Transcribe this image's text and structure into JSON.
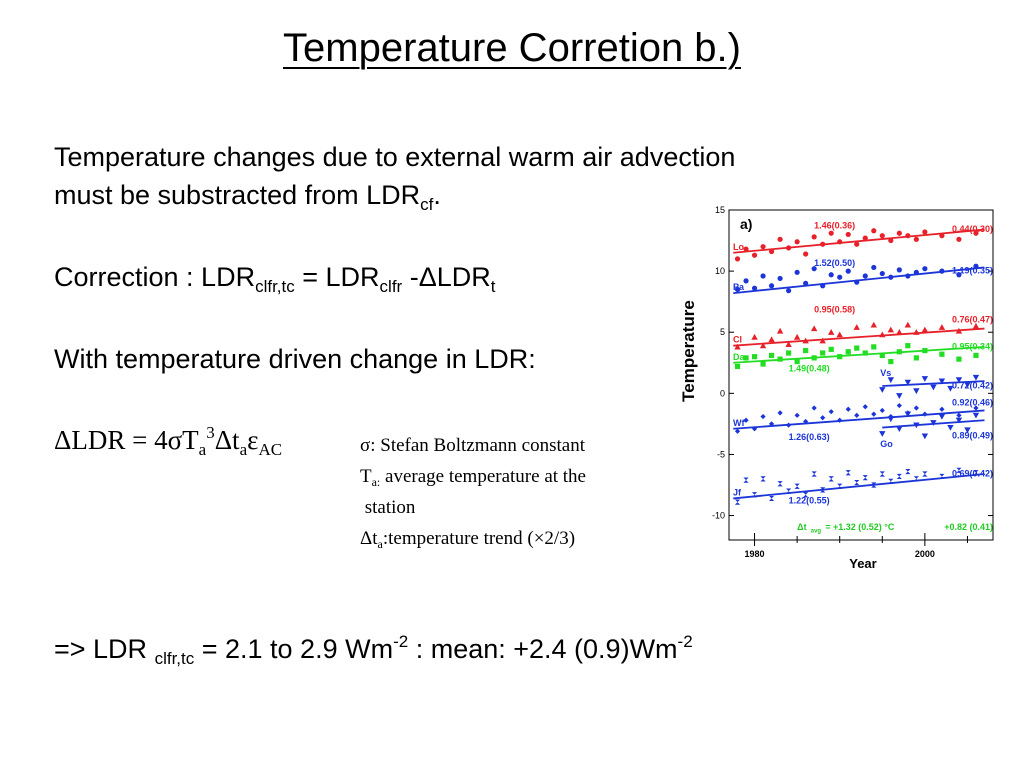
{
  "title": "Temperature Corretion b.)",
  "line1": "Temperature changes due to external warm air advection",
  "line2_main": "must be substracted from LDR",
  "line2_sub": "cf",
  "line2_end": ".",
  "correction": {
    "prefix": "Correction : LDR",
    "sub1": "clfr,tc",
    "eq": " = LDR",
    "sub2": "clfr",
    "minus": " -ΔLDR",
    "sub3": "t"
  },
  "with_text": "With temperature driven change in LDR:",
  "formula": {
    "lhs": "ΔLDR = 4σT",
    "sub_a1": "a",
    "sup3": "3",
    "dt": "Δt",
    "sub_a2": "a",
    "eps": "ε",
    "sub_ac": "AC"
  },
  "notes": {
    "sigma": "σ: Stefan Boltzmann constant",
    "ta_main": "T",
    "ta_sub": "a:",
    "ta_rest": " average temperature at the",
    "station": " station",
    "dta_main": "Δt",
    "dta_sub": "a",
    "dta_rest": ":temperature trend (×2/3)"
  },
  "result": {
    "prefix": "=> LDR ",
    "sub": "clfr,tc",
    "mid": " = 2.1 to 2.9 Wm",
    "sup1": "-2",
    "mid2": " :  mean: +2.4 (0.9)Wm",
    "sup2": "-2"
  },
  "chart_data": {
    "type": "scatter",
    "panel_label": "a)",
    "xlabel": "Year",
    "ylabel": "Temperature",
    "xlim": [
      1977,
      2008
    ],
    "ylim": [
      -12,
      15
    ],
    "xticks": [
      1980,
      2000
    ],
    "yticks": [
      15,
      10,
      5,
      0,
      -5,
      -10
    ],
    "series": [
      {
        "name": "Lo",
        "color": "#e8202a",
        "shape": "circle",
        "trend_start": [
          1977.5,
          11.5
        ],
        "trend_end": [
          2007,
          13.4
        ],
        "points": [
          [
            1978,
            11.0
          ],
          [
            1979,
            11.8
          ],
          [
            1980,
            11.3
          ],
          [
            1981,
            12.0
          ],
          [
            1982,
            11.6
          ],
          [
            1983,
            12.6
          ],
          [
            1984,
            11.9
          ],
          [
            1985,
            12.4
          ],
          [
            1986,
            11.4
          ],
          [
            1987,
            12.8
          ],
          [
            1988,
            12.2
          ],
          [
            1989,
            13.1
          ],
          [
            1990,
            12.4
          ],
          [
            1991,
            13.0
          ],
          [
            1992,
            12.2
          ],
          [
            1993,
            12.7
          ],
          [
            1994,
            13.3
          ],
          [
            1995,
            12.9
          ],
          [
            1996,
            12.5
          ],
          [
            1997,
            13.1
          ],
          [
            1998,
            12.9
          ],
          [
            1999,
            12.6
          ],
          [
            2000,
            13.2
          ],
          [
            2002,
            12.9
          ],
          [
            2004,
            12.6
          ],
          [
            2006,
            13.1
          ]
        ],
        "labels": [
          {
            "text": "1.46(0.36)",
            "x": 1987,
            "y": 13.5
          },
          {
            "text": "0.44(0.30)",
            "x": 2008,
            "y": 13.2,
            "anchor": "end"
          }
        ]
      },
      {
        "name": "Pa",
        "color": "#1c35d8",
        "shape": "circle",
        "trend_start": [
          1977.5,
          8.2
        ],
        "trend_end": [
          2007,
          10.3
        ],
        "points": [
          [
            1978,
            8.5
          ],
          [
            1979,
            9.2
          ],
          [
            1980,
            8.6
          ],
          [
            1981,
            9.6
          ],
          [
            1982,
            8.8
          ],
          [
            1983,
            9.4
          ],
          [
            1984,
            8.4
          ],
          [
            1985,
            9.9
          ],
          [
            1986,
            9.0
          ],
          [
            1987,
            10.2
          ],
          [
            1988,
            8.8
          ],
          [
            1989,
            9.7
          ],
          [
            1990,
            9.5
          ],
          [
            1991,
            10.0
          ],
          [
            1992,
            9.1
          ],
          [
            1993,
            9.6
          ],
          [
            1994,
            10.3
          ],
          [
            1995,
            9.8
          ],
          [
            1996,
            9.5
          ],
          [
            1997,
            10.1
          ],
          [
            1998,
            9.6
          ],
          [
            1999,
            9.9
          ],
          [
            2000,
            10.2
          ],
          [
            2002,
            10.0
          ],
          [
            2004,
            9.7
          ],
          [
            2006,
            10.4
          ]
        ],
        "labels": [
          {
            "text": "1.52(0.50)",
            "x": 1987,
            "y": 10.4
          },
          {
            "text": "1.19(0.35)",
            "x": 2008,
            "y": 9.8,
            "anchor": "end"
          }
        ]
      },
      {
        "name": "Cl",
        "color": "#e8202a",
        "shape": "triangle",
        "trend_start": [
          1977.5,
          3.9
        ],
        "trend_end": [
          2007,
          5.3
        ],
        "points": [
          [
            1978,
            3.8
          ],
          [
            1980,
            4.6
          ],
          [
            1981,
            3.9
          ],
          [
            1982,
            4.4
          ],
          [
            1983,
            5.1
          ],
          [
            1984,
            4.0
          ],
          [
            1985,
            4.6
          ],
          [
            1986,
            4.3
          ],
          [
            1987,
            5.3
          ],
          [
            1988,
            4.3
          ],
          [
            1989,
            5.0
          ],
          [
            1990,
            4.8
          ],
          [
            1992,
            5.4
          ],
          [
            1994,
            5.6
          ],
          [
            1995,
            4.8
          ],
          [
            1996,
            5.2
          ],
          [
            1997,
            5.0
          ],
          [
            1998,
            5.6
          ],
          [
            1999,
            5.0
          ],
          [
            2000,
            5.2
          ],
          [
            2002,
            5.4
          ],
          [
            2004,
            5.1
          ],
          [
            2006,
            5.5
          ]
        ],
        "labels": [
          {
            "text": "0.95(0.58)",
            "x": 1987,
            "y": 6.6
          },
          {
            "text": "0.76(0.47)",
            "x": 2008,
            "y": 5.8,
            "anchor": "end"
          }
        ]
      },
      {
        "name": "Da",
        "color": "#22dd22",
        "shape": "square",
        "trend_start": [
          1977.5,
          2.5
        ],
        "trend_end": [
          2007,
          3.8
        ],
        "points": [
          [
            1978,
            2.2
          ],
          [
            1979,
            2.9
          ],
          [
            1980,
            3.0
          ],
          [
            1981,
            2.4
          ],
          [
            1982,
            3.1
          ],
          [
            1983,
            2.8
          ],
          [
            1984,
            3.3
          ],
          [
            1985,
            2.6
          ],
          [
            1986,
            3.5
          ],
          [
            1987,
            2.9
          ],
          [
            1988,
            3.3
          ],
          [
            1989,
            3.6
          ],
          [
            1990,
            3.0
          ],
          [
            1991,
            3.4
          ],
          [
            1992,
            3.7
          ],
          [
            1993,
            3.3
          ],
          [
            1994,
            3.8
          ],
          [
            1995,
            3.1
          ],
          [
            1996,
            2.6
          ],
          [
            1997,
            3.4
          ],
          [
            1998,
            3.9
          ],
          [
            1999,
            2.9
          ],
          [
            2000,
            3.5
          ],
          [
            2002,
            3.2
          ],
          [
            2004,
            2.8
          ],
          [
            2006,
            3.1
          ]
        ],
        "labels": [
          {
            "text": "1.49(0.48)",
            "x": 1984,
            "y": 1.8
          },
          {
            "text": "0.95(0.34)",
            "x": 2008,
            "y": 3.6,
            "anchor": "end"
          }
        ]
      },
      {
        "name": "Vs",
        "color": "#1c35d8",
        "shape": "triangle-down",
        "trend_start": [
          1995,
          0.6
        ],
        "trend_end": [
          2007,
          1.0
        ],
        "points": [
          [
            1995,
            0.3
          ],
          [
            1996,
            1.1
          ],
          [
            1997,
            -0.2
          ],
          [
            1998,
            0.9
          ],
          [
            1999,
            0.2
          ],
          [
            2000,
            1.2
          ],
          [
            2001,
            0.5
          ],
          [
            2002,
            1.0
          ],
          [
            2003,
            0.4
          ],
          [
            2004,
            1.1
          ],
          [
            2005,
            0.7
          ],
          [
            2006,
            1.3
          ]
        ],
        "labels": [
          {
            "text": "0.72(0.42)",
            "x": 2008,
            "y": 0.4,
            "anchor": "end"
          },
          {
            "text": "0.92(0.46)",
            "x": 2008,
            "y": -1.0,
            "anchor": "end"
          }
        ]
      },
      {
        "name": "Wf",
        "color": "#1c35d8",
        "shape": "diamond",
        "trend_start": [
          1977.5,
          -2.9
        ],
        "trend_end": [
          2007,
          -1.4
        ],
        "points": [
          [
            1978,
            -3.1
          ],
          [
            1979,
            -2.2
          ],
          [
            1980,
            -2.9
          ],
          [
            1981,
            -1.9
          ],
          [
            1982,
            -2.5
          ],
          [
            1983,
            -1.6
          ],
          [
            1984,
            -2.6
          ],
          [
            1985,
            -1.8
          ],
          [
            1986,
            -2.3
          ],
          [
            1987,
            -1.2
          ],
          [
            1988,
            -2.0
          ],
          [
            1989,
            -1.5
          ],
          [
            1990,
            -2.2
          ],
          [
            1991,
            -1.3
          ],
          [
            1992,
            -1.8
          ],
          [
            1993,
            -1.1
          ],
          [
            1994,
            -1.7
          ],
          [
            1995,
            -1.4
          ],
          [
            1996,
            -1.9
          ],
          [
            1997,
            -1.0
          ],
          [
            1998,
            -1.6
          ],
          [
            1999,
            -1.2
          ],
          [
            2000,
            -1.7
          ],
          [
            2002,
            -1.3
          ],
          [
            2004,
            -1.8
          ],
          [
            2006,
            -1.2
          ]
        ],
        "labels": [
          {
            "text": "1.26(0.63)",
            "x": 1984,
            "y": -3.8
          }
        ]
      },
      {
        "name": "Go",
        "color": "#1c35d8",
        "shape": "triangle-down",
        "trend_start": [
          1995,
          -2.8
        ],
        "trend_end": [
          2007,
          -2.2
        ],
        "points": [
          [
            1995,
            -3.3
          ],
          [
            1996,
            -2.1
          ],
          [
            1997,
            -2.9
          ],
          [
            1998,
            -1.7
          ],
          [
            1999,
            -2.6
          ],
          [
            2000,
            -3.5
          ],
          [
            2001,
            -2.4
          ],
          [
            2002,
            -1.9
          ],
          [
            2003,
            -2.8
          ],
          [
            2004,
            -2.2
          ],
          [
            2005,
            -3.0
          ],
          [
            2006,
            -1.8
          ]
        ],
        "labels": [
          {
            "text": "0.89(0.49)",
            "x": 2008,
            "y": -3.7,
            "anchor": "end"
          }
        ]
      },
      {
        "name": "Jf",
        "color": "#1c35d8",
        "shape": "hourglass",
        "trend_start": [
          1977.5,
          -8.6
        ],
        "trend_end": [
          2007,
          -6.6
        ],
        "points": [
          [
            1978,
            -8.9
          ],
          [
            1979,
            -7.1
          ],
          [
            1980,
            -8.3
          ],
          [
            1981,
            -7.0
          ],
          [
            1982,
            -8.6
          ],
          [
            1983,
            -7.4
          ],
          [
            1984,
            -8.0
          ],
          [
            1985,
            -7.6
          ],
          [
            1986,
            -8.3
          ],
          [
            1987,
            -6.6
          ],
          [
            1988,
            -7.9
          ],
          [
            1989,
            -7.0
          ],
          [
            1990,
            -7.6
          ],
          [
            1991,
            -6.5
          ],
          [
            1992,
            -7.3
          ],
          [
            1993,
            -6.9
          ],
          [
            1994,
            -7.5
          ],
          [
            1995,
            -6.6
          ],
          [
            1996,
            -7.2
          ],
          [
            1997,
            -6.8
          ],
          [
            1998,
            -6.4
          ],
          [
            1999,
            -7.0
          ],
          [
            2000,
            -6.6
          ],
          [
            2002,
            -6.8
          ],
          [
            2004,
            -6.3
          ],
          [
            2006,
            -6.5
          ]
        ],
        "labels": [
          {
            "text": "1.22(0.55)",
            "x": 1984,
            "y": -9.0
          },
          {
            "text": "0.69(0.42)",
            "x": 2008,
            "y": -6.8,
            "anchor": "end"
          }
        ]
      }
    ],
    "annotations": [
      {
        "text": "Δt",
        "x": 1985,
        "y": -11.2
      },
      {
        "text": "avg",
        "x": 1986.6,
        "y": -11.4
      },
      {
        "text": "= +1.32 (0.52) °C",
        "x": 1988.3,
        "y": -11.2
      },
      {
        "text": "+0.82 (0.41)",
        "x": 2008,
        "y": -11.2,
        "anchor": "end"
      }
    ],
    "annotation_color": "#22cc22"
  }
}
